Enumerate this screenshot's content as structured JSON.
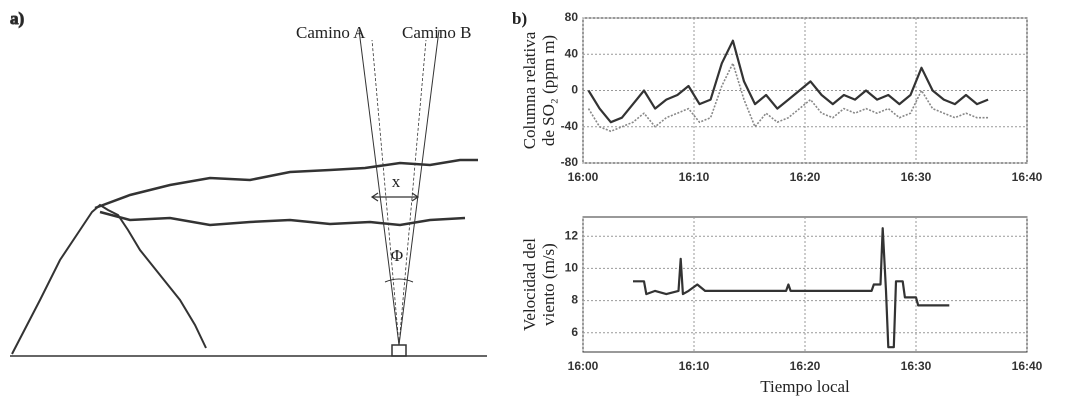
{
  "panel_a": {
    "label": "a)",
    "path_a": "Camino A",
    "path_b": "Camino B",
    "width_label": "x",
    "angle_label": "Φ"
  },
  "panel_b_label": "b)",
  "chart_data": [
    {
      "type": "line",
      "ylabel": [
        "Columna relativa",
        "de SO₂ (ppm m)"
      ],
      "x": [
        960.5,
        961.5,
        962.5,
        963.5,
        964.5,
        965.5,
        966.5,
        967.5,
        968.5,
        969.5,
        970.5,
        971.5,
        972.5,
        973.5,
        974.5,
        975.5,
        976.5,
        977.5,
        978.5,
        979.5,
        980.5,
        981.5,
        982.5,
        983.5,
        984.5,
        985.5,
        986.5,
        987.5,
        988.5,
        989.5,
        990.5,
        991.5,
        992.5,
        993.5,
        994.5,
        995.5,
        996.5
      ],
      "series": [
        {
          "color": "#333333",
          "style": "solid",
          "values": [
            0,
            -20,
            -35,
            -30,
            -15,
            0,
            -20,
            -10,
            -5,
            5,
            -15,
            -10,
            30,
            55,
            10,
            -15,
            -5,
            -20,
            -10,
            0,
            10,
            -5,
            -15,
            -5,
            -10,
            0,
            -10,
            -5,
            -15,
            -5,
            25,
            0,
            -10,
            -15,
            -5,
            -15,
            -10
          ]
        },
        {
          "color": "#888888",
          "style": "dotted",
          "values": [
            -20,
            -40,
            -45,
            -40,
            -35,
            -25,
            -40,
            -30,
            -25,
            -20,
            -35,
            -30,
            5,
            30,
            -10,
            -40,
            -25,
            -35,
            -30,
            -20,
            -10,
            -25,
            -30,
            -20,
            -25,
            -20,
            -25,
            -20,
            -30,
            -25,
            0,
            -20,
            -25,
            -30,
            -25,
            -30,
            -30
          ]
        }
      ],
      "xlim": [
        960,
        1000
      ],
      "xticks": [
        {
          "value": 960,
          "label": "16:00"
        },
        {
          "value": 970,
          "label": "16:10"
        },
        {
          "value": 980,
          "label": "16:20"
        },
        {
          "value": 990,
          "label": "16:30"
        },
        {
          "value": 1000,
          "label": "16:40"
        }
      ],
      "ylim": [
        -80,
        80
      ],
      "yticks": [
        -80,
        -40,
        0,
        40,
        80
      ],
      "grid": true
    },
    {
      "type": "line",
      "ylabel": [
        "Velocidad del",
        "viento (m/s)"
      ],
      "xlabel": "Tiempo local",
      "x": [
        964.5,
        965.5,
        965.7,
        966.5,
        967.5,
        968.6,
        968.8,
        969,
        969.5,
        970.3,
        971,
        978.3,
        978.5,
        978.7,
        986,
        986.2,
        986.8,
        987,
        987.3,
        987.5,
        988,
        988.2,
        988.8,
        989,
        990,
        990.2,
        993
      ],
      "series": [
        {
          "color": "#333333",
          "style": "solid",
          "values": [
            9.2,
            9.2,
            8.4,
            8.6,
            8.4,
            8.6,
            10.6,
            8.4,
            8.6,
            9,
            8.6,
            8.6,
            9,
            8.6,
            8.6,
            9,
            9,
            12.5,
            8.6,
            5.1,
            5.1,
            9.2,
            9.2,
            8.2,
            8.2,
            7.7,
            7.7
          ]
        }
      ],
      "xlim": [
        960,
        1000
      ],
      "xticks": [
        {
          "value": 960,
          "label": "16:00"
        },
        {
          "value": 970,
          "label": "16:10"
        },
        {
          "value": 980,
          "label": "16:20"
        },
        {
          "value": 990,
          "label": "16:30"
        },
        {
          "value": 1000,
          "label": "16:40"
        }
      ],
      "ylim": [
        4.8,
        13.2
      ],
      "yticks": [
        6,
        8,
        10,
        12
      ],
      "grid": true
    }
  ]
}
